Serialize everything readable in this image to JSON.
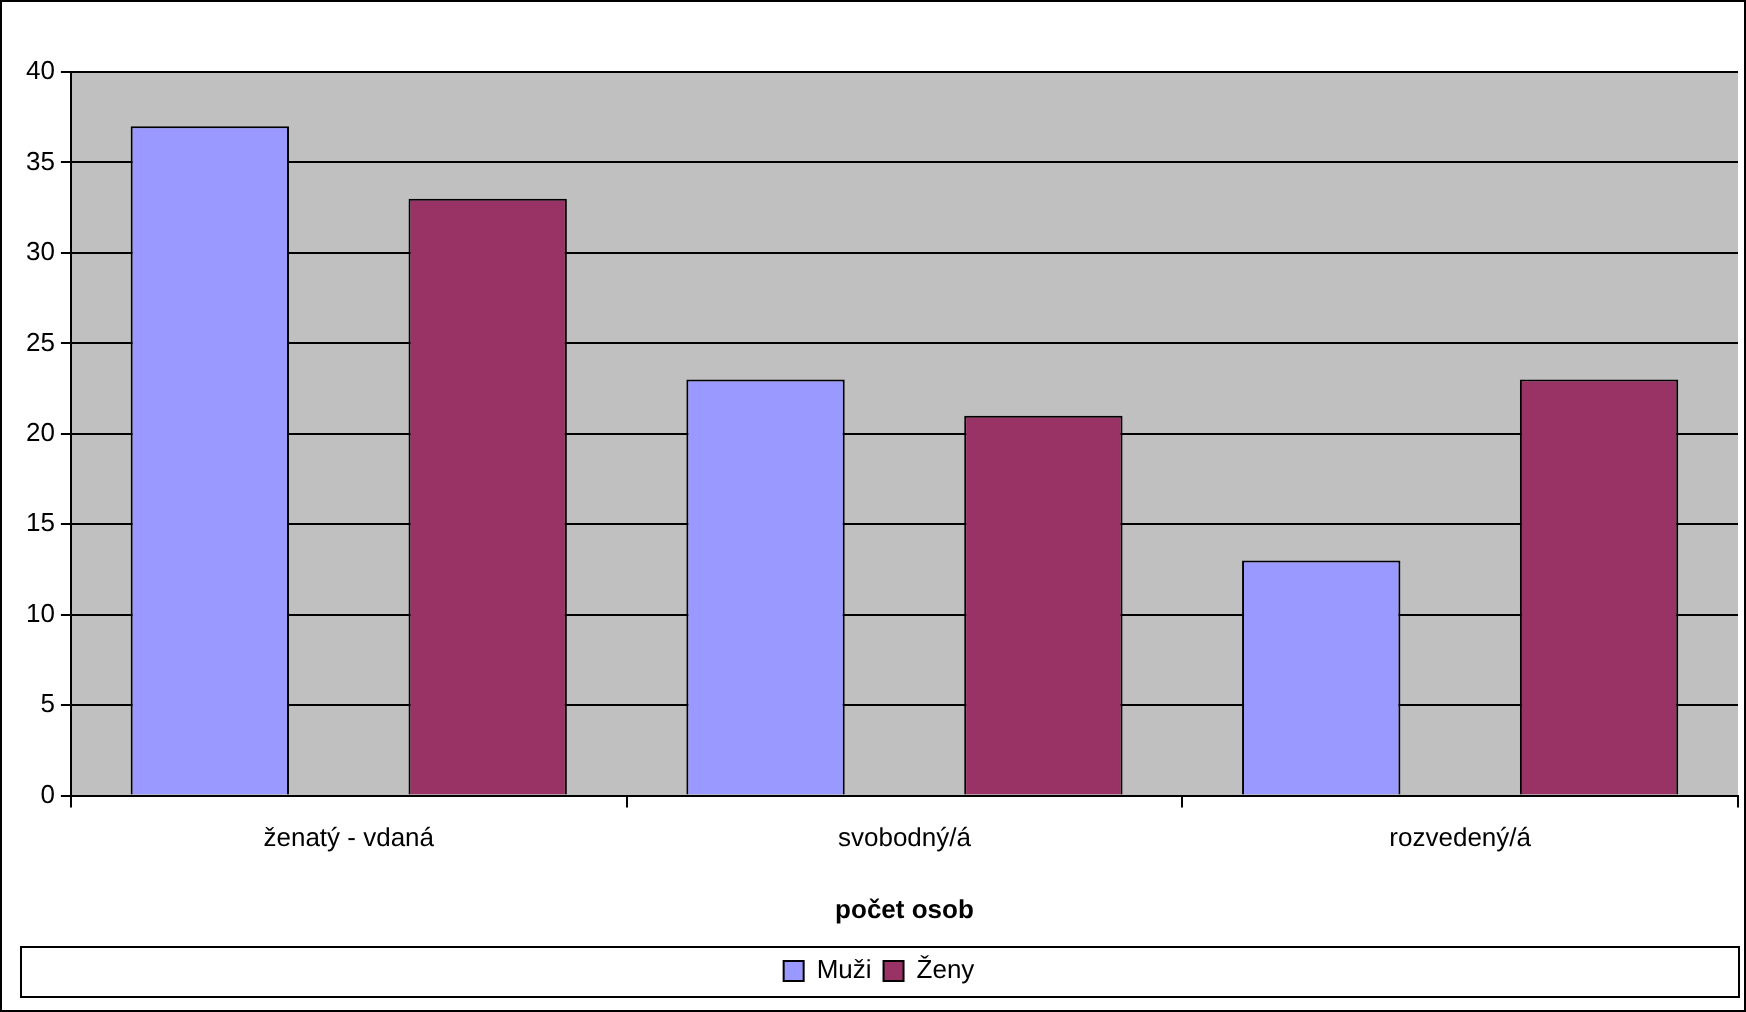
{
  "chart_data": {
    "type": "bar",
    "xlabel": "počet osob",
    "categories": [
      "ženatý - vdaná",
      "svobodný/á",
      "rozvedený/á"
    ],
    "series": [
      {
        "name": "Muži",
        "color": "#9999ff",
        "values": [
          37,
          23,
          13
        ]
      },
      {
        "name": "Ženy",
        "color": "#993366",
        "values": [
          33,
          21,
          23
        ]
      }
    ],
    "ylim": [
      0,
      40
    ],
    "yticks": [
      0,
      5,
      10,
      15,
      20,
      25,
      30,
      35,
      40
    ],
    "grid": "y",
    "legend": "bottom"
  }
}
